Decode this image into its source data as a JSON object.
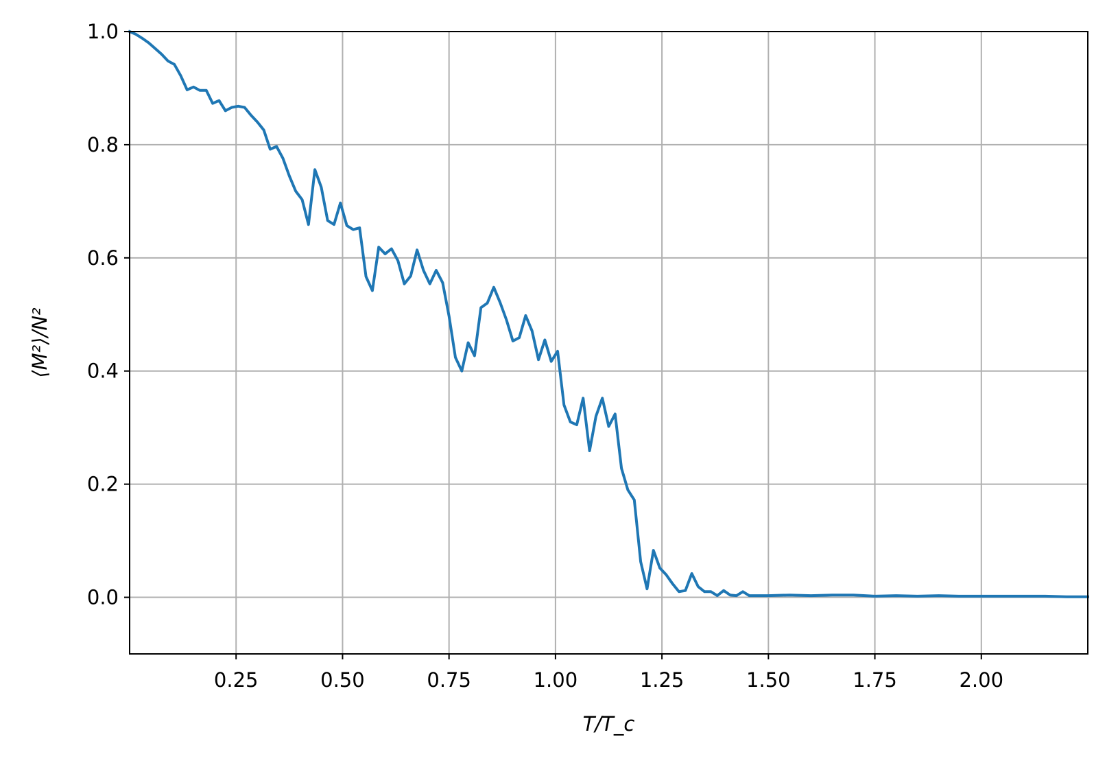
{
  "chart_data": {
    "type": "line",
    "xlabel": "T/T_c",
    "ylabel": "⟨M²⟩/N²",
    "xlim": [
      0.0,
      2.25
    ],
    "ylim": [
      -0.1,
      1.0
    ],
    "grid": true,
    "x_ticks": [
      0.25,
      0.5,
      0.75,
      1.0,
      1.25,
      1.5,
      1.75,
      2.0
    ],
    "x_tick_labels": [
      "0.25",
      "0.50",
      "0.75",
      "1.00",
      "1.25",
      "1.50",
      "1.75",
      "2.00"
    ],
    "y_ticks": [
      0.0,
      0.2,
      0.4,
      0.6,
      0.8,
      1.0
    ],
    "y_tick_labels": [
      "0.0",
      "0.2",
      "0.4",
      "0.6",
      "0.8",
      "1.0"
    ],
    "series": [
      {
        "color": "#1f77b4",
        "x": [
          0.0,
          0.015,
          0.03,
          0.045,
          0.06,
          0.075,
          0.09,
          0.105,
          0.12,
          0.135,
          0.15,
          0.165,
          0.18,
          0.195,
          0.21,
          0.225,
          0.24,
          0.255,
          0.27,
          0.285,
          0.3,
          0.315,
          0.33,
          0.345,
          0.36,
          0.375,
          0.39,
          0.405,
          0.42,
          0.435,
          0.45,
          0.465,
          0.48,
          0.495,
          0.51,
          0.525,
          0.54,
          0.555,
          0.57,
          0.585,
          0.6,
          0.615,
          0.63,
          0.645,
          0.66,
          0.675,
          0.69,
          0.705,
          0.72,
          0.735,
          0.75,
          0.765,
          0.78,
          0.795,
          0.81,
          0.825,
          0.84,
          0.855,
          0.87,
          0.885,
          0.9,
          0.915,
          0.93,
          0.945,
          0.96,
          0.975,
          0.99,
          1.005,
          1.02,
          1.035,
          1.05,
          1.065,
          1.08,
          1.095,
          1.11,
          1.125,
          1.14,
          1.155,
          1.17,
          1.185,
          1.2,
          1.215,
          1.23,
          1.245,
          1.26,
          1.275,
          1.29,
          1.305,
          1.32,
          1.335,
          1.35,
          1.365,
          1.38,
          1.395,
          1.41,
          1.425,
          1.44,
          1.455,
          1.5,
          1.55,
          1.6,
          1.65,
          1.7,
          1.75,
          1.8,
          1.85,
          1.9,
          1.95,
          2.0,
          2.05,
          2.1,
          2.15,
          2.2,
          2.25
        ],
        "y": [
          1.0,
          0.995,
          0.988,
          0.98,
          0.97,
          0.96,
          0.948,
          0.942,
          0.922,
          0.897,
          0.902,
          0.896,
          0.896,
          0.873,
          0.878,
          0.86,
          0.866,
          0.868,
          0.866,
          0.852,
          0.84,
          0.826,
          0.792,
          0.797,
          0.776,
          0.745,
          0.718,
          0.703,
          0.659,
          0.756,
          0.725,
          0.666,
          0.659,
          0.697,
          0.657,
          0.65,
          0.653,
          0.567,
          0.542,
          0.619,
          0.607,
          0.616,
          0.595,
          0.554,
          0.568,
          0.614,
          0.578,
          0.554,
          0.578,
          0.556,
          0.497,
          0.424,
          0.4,
          0.45,
          0.427,
          0.512,
          0.52,
          0.548,
          0.521,
          0.49,
          0.453,
          0.459,
          0.498,
          0.471,
          0.42,
          0.455,
          0.417,
          0.435,
          0.34,
          0.31,
          0.305,
          0.352,
          0.259,
          0.32,
          0.352,
          0.302,
          0.324,
          0.228,
          0.19,
          0.172,
          0.063,
          0.015,
          0.083,
          0.052,
          0.04,
          0.024,
          0.01,
          0.012,
          0.042,
          0.019,
          0.01,
          0.01,
          0.003,
          0.012,
          0.004,
          0.003,
          0.01,
          0.003,
          0.003,
          0.004,
          0.003,
          0.004,
          0.004,
          0.002,
          0.003,
          0.002,
          0.003,
          0.002,
          0.002,
          0.002,
          0.002,
          0.002,
          0.001,
          0.001
        ]
      }
    ]
  }
}
